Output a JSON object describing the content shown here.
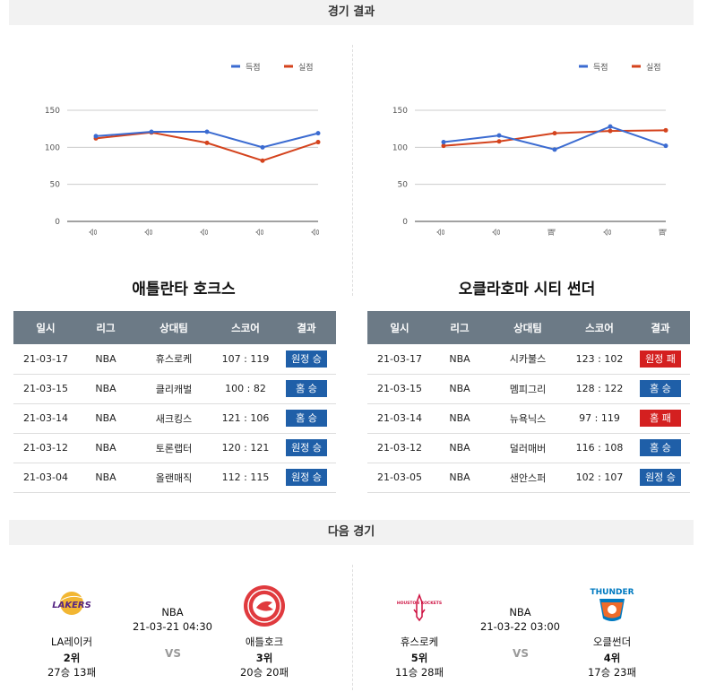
{
  "sections": {
    "results_title": "경기 결과",
    "next_title": "다음 경기"
  },
  "legend": {
    "scored": "득점",
    "allowed": "실점",
    "scored_color": "#3b6bd1",
    "allowed_color": "#d4431d"
  },
  "chart_data": [
    {
      "type": "line",
      "x": [
        "승",
        "승",
        "승",
        "승",
        "승"
      ],
      "series": [
        {
          "name": "득점",
          "values": [
            115,
            121,
            121,
            100,
            119
          ]
        },
        {
          "name": "실점",
          "values": [
            112,
            120,
            106,
            82,
            107
          ]
        }
      ],
      "ylim": [
        0,
        150
      ],
      "yticks": [
        0,
        50,
        100,
        150
      ],
      "grid": true,
      "legend_position": "top-right"
    },
    {
      "type": "line",
      "x": [
        "승",
        "승",
        "패",
        "승",
        "패"
      ],
      "series": [
        {
          "name": "득점",
          "values": [
            107,
            116,
            97,
            128,
            102
          ]
        },
        {
          "name": "실점",
          "values": [
            102,
            108,
            119,
            122,
            123
          ]
        }
      ],
      "ylim": [
        0,
        150
      ],
      "yticks": [
        0,
        50,
        100,
        150
      ],
      "grid": true,
      "legend_position": "top-right"
    }
  ],
  "left_team": {
    "title": "애틀란타 호크스",
    "headers": [
      "일시",
      "리그",
      "상대팀",
      "스코어",
      "결과"
    ],
    "rows": [
      {
        "date": "21-03-17",
        "league": "NBA",
        "opponent": "휴스로케",
        "score": "107 : 119",
        "result": "원정 승",
        "status": "win"
      },
      {
        "date": "21-03-15",
        "league": "NBA",
        "opponent": "클리캐벌",
        "score": "100 : 82",
        "result": "홈 승",
        "status": "win"
      },
      {
        "date": "21-03-14",
        "league": "NBA",
        "opponent": "새크킹스",
        "score": "121 : 106",
        "result": "홈 승",
        "status": "win"
      },
      {
        "date": "21-03-12",
        "league": "NBA",
        "opponent": "토론랩터",
        "score": "120 : 121",
        "result": "원정 승",
        "status": "win"
      },
      {
        "date": "21-03-04",
        "league": "NBA",
        "opponent": "올랜매직",
        "score": "112 : 115",
        "result": "원정 승",
        "status": "win"
      }
    ]
  },
  "right_team": {
    "title": "오클라호마 시티 썬더",
    "headers": [
      "일시",
      "리그",
      "상대팀",
      "스코어",
      "결과"
    ],
    "rows": [
      {
        "date": "21-03-17",
        "league": "NBA",
        "opponent": "시카불스",
        "score": "123 : 102",
        "result": "원정 패",
        "status": "loss"
      },
      {
        "date": "21-03-15",
        "league": "NBA",
        "opponent": "멤피그리",
        "score": "128 : 122",
        "result": "홈 승",
        "status": "win"
      },
      {
        "date": "21-03-14",
        "league": "NBA",
        "opponent": "뉴욕닉스",
        "score": "97 : 119",
        "result": "홈 패",
        "status": "loss"
      },
      {
        "date": "21-03-12",
        "league": "NBA",
        "opponent": "덜러매버",
        "score": "116 : 108",
        "result": "홈 승",
        "status": "win"
      },
      {
        "date": "21-03-05",
        "league": "NBA",
        "opponent": "샌안스퍼",
        "score": "102 : 107",
        "result": "원정 승",
        "status": "win"
      }
    ]
  },
  "next_games": [
    {
      "league": "NBA",
      "datetime": "21-03-21 04:30",
      "vs": "VS",
      "home": {
        "name": "LA레이커",
        "rank": "2위",
        "record": "27승 13패",
        "logo_icon": "lakers-logo-icon",
        "logo_text": "LAKERS"
      },
      "away": {
        "name": "애틀호크",
        "rank": "3위",
        "record": "20승 20패",
        "logo_icon": "hawks-logo-icon"
      }
    },
    {
      "league": "NBA",
      "datetime": "21-03-22 03:00",
      "vs": "VS",
      "home": {
        "name": "휴스로케",
        "rank": "5위",
        "record": "11승 28패",
        "logo_icon": "rockets-logo-icon",
        "logo_text": "HOUSTON ROCKETS"
      },
      "away": {
        "name": "오클썬더",
        "rank": "4위",
        "record": "17승 23패",
        "logo_icon": "thunder-logo-icon",
        "logo_text": "THUNDER"
      }
    }
  ]
}
